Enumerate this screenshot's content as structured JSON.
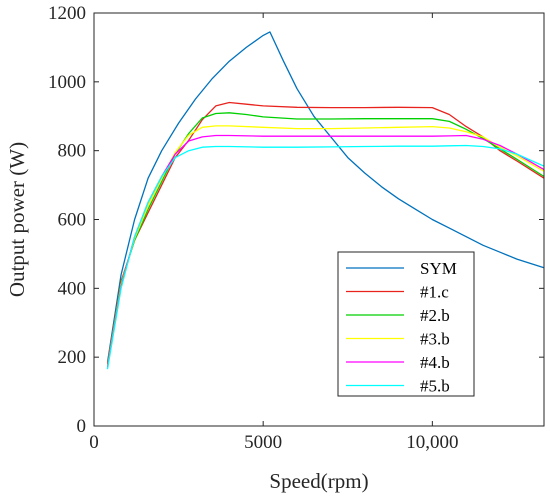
{
  "chart_data": {
    "type": "line",
    "xlabel": "Speed(rpm)",
    "ylabel": "Output power (W)",
    "xlim": [
      0,
      13300
    ],
    "ylim": [
      0,
      1200
    ],
    "xticks": [
      0,
      5000,
      10000
    ],
    "xtick_labels": [
      "0",
      "5000",
      "10,000"
    ],
    "yticks": [
      0,
      200,
      400,
      600,
      800,
      1000,
      1200
    ],
    "ytick_labels": [
      "0",
      "200",
      "400",
      "600",
      "800",
      "1000",
      "1200"
    ],
    "grid": false,
    "legend_position": "bottom-right",
    "series": [
      {
        "name": "SYM",
        "color": "#0072BD",
        "points": [
          [
            400,
            185
          ],
          [
            800,
            440
          ],
          [
            1200,
            600
          ],
          [
            1600,
            720
          ],
          [
            2000,
            800
          ],
          [
            2500,
            880
          ],
          [
            3000,
            950
          ],
          [
            3500,
            1010
          ],
          [
            4000,
            1060
          ],
          [
            4500,
            1100
          ],
          [
            5000,
            1135
          ],
          [
            5200,
            1145
          ],
          [
            5600,
            1060
          ],
          [
            6000,
            980
          ],
          [
            6500,
            900
          ],
          [
            7000,
            840
          ],
          [
            7500,
            780
          ],
          [
            8000,
            735
          ],
          [
            8500,
            695
          ],
          [
            9000,
            660
          ],
          [
            9500,
            630
          ],
          [
            10000,
            600
          ],
          [
            10500,
            575
          ],
          [
            11000,
            550
          ],
          [
            11500,
            525
          ],
          [
            12000,
            505
          ],
          [
            12500,
            485
          ],
          [
            13300,
            460
          ]
        ]
      },
      {
        "name": "#1.c",
        "color": "#E8231E",
        "points": [
          [
            400,
            180
          ],
          [
            800,
            420
          ],
          [
            1200,
            540
          ],
          [
            1600,
            620
          ],
          [
            2000,
            700
          ],
          [
            2400,
            780
          ],
          [
            2800,
            830
          ],
          [
            3200,
            890
          ],
          [
            3600,
            930
          ],
          [
            4000,
            940
          ],
          [
            4500,
            935
          ],
          [
            5000,
            930
          ],
          [
            6000,
            926
          ],
          [
            7000,
            925
          ],
          [
            8000,
            925
          ],
          [
            9000,
            926
          ],
          [
            10000,
            925
          ],
          [
            10500,
            905
          ],
          [
            11000,
            870
          ],
          [
            11500,
            840
          ],
          [
            12000,
            800
          ],
          [
            12500,
            770
          ],
          [
            13300,
            720
          ]
        ]
      },
      {
        "name": "#2.b",
        "color": "#00D000",
        "points": [
          [
            400,
            175
          ],
          [
            800,
            415
          ],
          [
            1200,
            540
          ],
          [
            1600,
            630
          ],
          [
            2000,
            710
          ],
          [
            2400,
            790
          ],
          [
            2800,
            850
          ],
          [
            3200,
            895
          ],
          [
            3600,
            908
          ],
          [
            4000,
            910
          ],
          [
            4500,
            905
          ],
          [
            5000,
            898
          ],
          [
            6000,
            892
          ],
          [
            7000,
            892
          ],
          [
            8000,
            893
          ],
          [
            9000,
            893
          ],
          [
            10000,
            893
          ],
          [
            10500,
            885
          ],
          [
            11000,
            862
          ],
          [
            11500,
            835
          ],
          [
            12000,
            805
          ],
          [
            12500,
            775
          ],
          [
            13300,
            725
          ]
        ]
      },
      {
        "name": "#3.b",
        "color": "#FFFF00",
        "points": [
          [
            400,
            172
          ],
          [
            800,
            410
          ],
          [
            1200,
            545
          ],
          [
            1600,
            640
          ],
          [
            2000,
            720
          ],
          [
            2400,
            795
          ],
          [
            2800,
            845
          ],
          [
            3200,
            868
          ],
          [
            3600,
            872
          ],
          [
            4000,
            872
          ],
          [
            5000,
            868
          ],
          [
            6000,
            864
          ],
          [
            7000,
            864
          ],
          [
            8000,
            866
          ],
          [
            9000,
            868
          ],
          [
            10000,
            870
          ],
          [
            10500,
            866
          ],
          [
            11000,
            855
          ],
          [
            11500,
            840
          ],
          [
            12000,
            810
          ],
          [
            12500,
            785
          ],
          [
            13300,
            740
          ]
        ]
      },
      {
        "name": "#4.b",
        "color": "#FF00FF",
        "points": [
          [
            400,
            170
          ],
          [
            800,
            405
          ],
          [
            1200,
            550
          ],
          [
            1600,
            650
          ],
          [
            2000,
            725
          ],
          [
            2400,
            790
          ],
          [
            2800,
            828
          ],
          [
            3200,
            840
          ],
          [
            3600,
            844
          ],
          [
            4000,
            844
          ],
          [
            5000,
            842
          ],
          [
            6000,
            842
          ],
          [
            7000,
            842
          ],
          [
            8000,
            842
          ],
          [
            9000,
            842
          ],
          [
            10000,
            842
          ],
          [
            10500,
            843
          ],
          [
            11000,
            844
          ],
          [
            11500,
            833
          ],
          [
            12000,
            815
          ],
          [
            12500,
            790
          ],
          [
            13300,
            745
          ]
        ]
      },
      {
        "name": "#5.b",
        "color": "#00FFFF",
        "points": [
          [
            400,
            165
          ],
          [
            800,
            400
          ],
          [
            1200,
            550
          ],
          [
            1600,
            650
          ],
          [
            2000,
            725
          ],
          [
            2400,
            780
          ],
          [
            2800,
            800
          ],
          [
            3200,
            810
          ],
          [
            3600,
            812
          ],
          [
            4000,
            812
          ],
          [
            5000,
            810
          ],
          [
            6000,
            810
          ],
          [
            7000,
            811
          ],
          [
            8000,
            812
          ],
          [
            9000,
            813
          ],
          [
            10000,
            813
          ],
          [
            10500,
            814
          ],
          [
            11000,
            815
          ],
          [
            11500,
            812
          ],
          [
            12000,
            805
          ],
          [
            12500,
            790
          ],
          [
            13300,
            755
          ]
        ]
      }
    ]
  }
}
